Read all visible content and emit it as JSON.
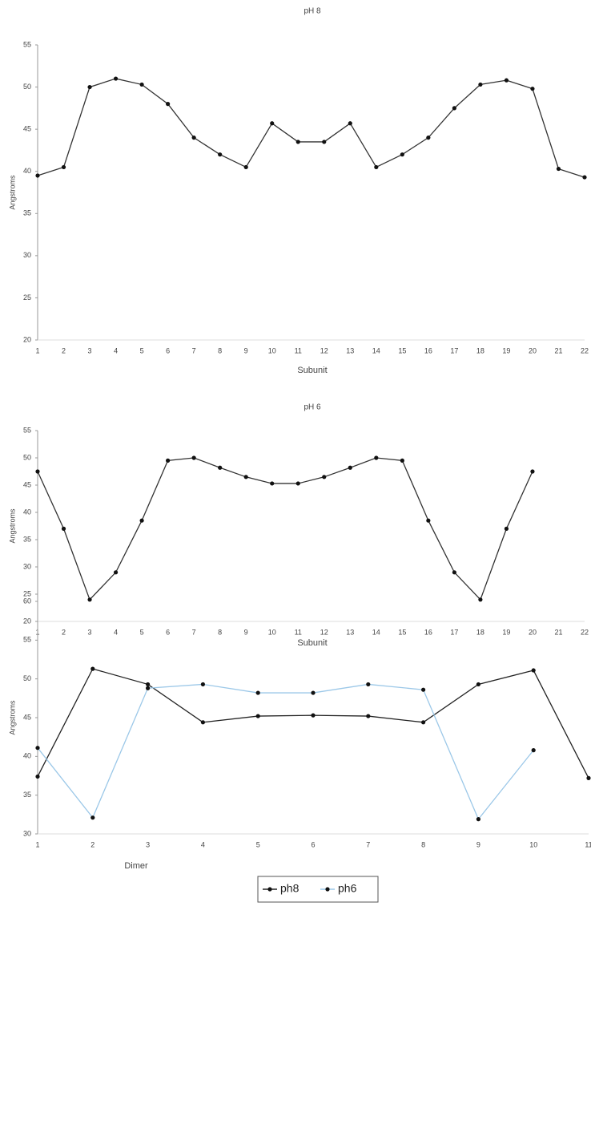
{
  "chart_data": [
    {
      "type": "line",
      "title": "pH 8",
      "x_label": "Subunit",
      "y_label": "Angstroms",
      "categories": [
        "1",
        "2",
        "3",
        "4",
        "5",
        "6",
        "7",
        "8",
        "9",
        "10",
        "11",
        "12",
        "13",
        "14",
        "15",
        "16",
        "17",
        "18",
        "19",
        "20",
        "21",
        "22"
      ],
      "series": [
        {
          "color": "#333333",
          "values": [
            39.5,
            40.5,
            50,
            51,
            50.3,
            48,
            44,
            42,
            40.5,
            45.7,
            43.5,
            43.5,
            45.7,
            40.5,
            42,
            44,
            47.5,
            50.3,
            50.8,
            49.8,
            40.3,
            39.3
          ]
        }
      ],
      "ylim": [
        20,
        55
      ],
      "yticks": [
        20,
        25,
        30,
        35,
        40,
        45,
        50,
        55
      ]
    },
    {
      "type": "line",
      "title": "pH 6",
      "x_label": "Subunit",
      "y_label": "Angstroms",
      "categories": [
        "1",
        "2",
        "3",
        "4",
        "5",
        "6",
        "7",
        "8",
        "9",
        "10",
        "11",
        "12",
        "13",
        "14",
        "15",
        "16",
        "17",
        "18",
        "19",
        "20",
        "21",
        "22"
      ],
      "series": [
        {
          "color": "#333333",
          "values": [
            47.5,
            37,
            24,
            29,
            38.5,
            49.5,
            50,
            48.2,
            46.5,
            45.3,
            45.3,
            46.5,
            48.2,
            50,
            49.5,
            38.5,
            29,
            24,
            37,
            47.5,
            null,
            null
          ]
        }
      ],
      "ylim": [
        20,
        55
      ],
      "yticks": [
        20,
        25,
        30,
        35,
        40,
        45,
        50,
        55
      ]
    },
    {
      "type": "line",
      "x_label": "Dimer",
      "y_label": "Angstroms",
      "categories": [
        "1",
        "2",
        "3",
        "4",
        "5",
        "6",
        "7",
        "8",
        "9",
        "10",
        "11"
      ],
      "series": [
        {
          "name": "ph8",
          "color": "#222222",
          "values": [
            37.4,
            51.3,
            49.3,
            44.4,
            45.2,
            45.3,
            45.2,
            44.4,
            49.3,
            51.1,
            37.2
          ]
        },
        {
          "name": "ph6",
          "color": "#9cc8e8",
          "values": [
            41.1,
            32.1,
            48.8,
            49.3,
            48.2,
            48.2,
            49.3,
            48.6,
            31.9,
            40.8,
            null
          ]
        }
      ],
      "ylim": [
        30,
        60
      ],
      "yticks": [
        30,
        35,
        40,
        45,
        50,
        55,
        60
      ]
    }
  ]
}
